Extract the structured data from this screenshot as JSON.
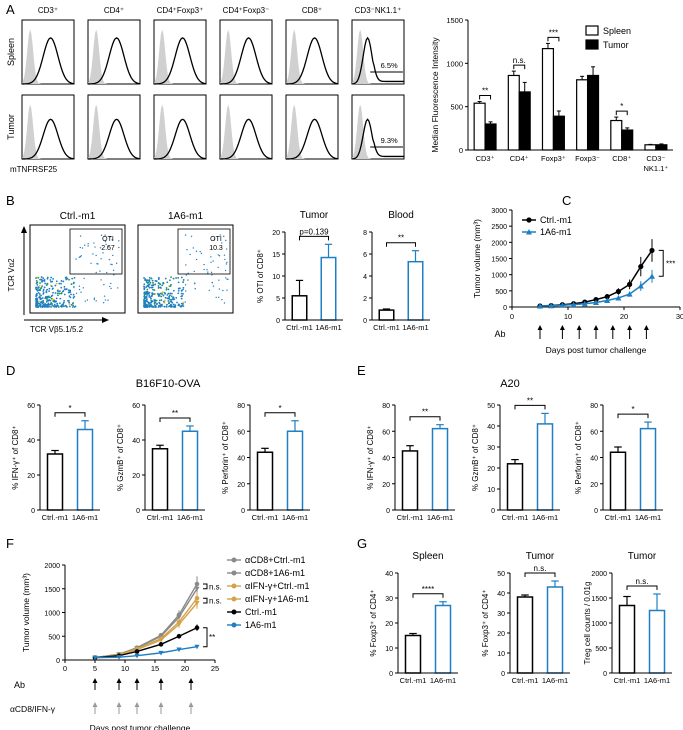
{
  "colors": {
    "black": "#000000",
    "blue": "#1f7fc4",
    "grey_fill": "#d0d0d0",
    "grey_line": "#9a9a9a",
    "gold": "#d4a24a",
    "darkgrey": "#8a8a8a"
  },
  "panel_letters": [
    "A",
    "B",
    "C",
    "D",
    "E",
    "F",
    "G"
  ],
  "A": {
    "flow_cols": [
      "CD3⁺",
      "CD4⁺",
      "CD4⁺Foxp3⁺",
      "CD4⁺Foxp3⁻",
      "CD8⁺",
      "CD3⁻NK1.1⁺"
    ],
    "flow_rows": [
      "Spleen",
      "Tumor"
    ],
    "xlabel": "mTNFRSF25",
    "gate_pct": [
      "6.5%",
      "9.3%"
    ]
  },
  "B": {
    "flow_titles": [
      "Ctrl.-m1",
      "1A6-m1"
    ],
    "gate_labels": [
      [
        "OTI",
        "2.67"
      ],
      [
        "OTI",
        "10.3"
      ]
    ],
    "xlabel": "TCR Vβ5.1/5.2",
    "ylabel": "TCR Vα2"
  },
  "chart_data": [
    {
      "id": "A_bar",
      "type": "bar",
      "ylabel": "Median Fluorescence Intensity",
      "ylim": [
        0,
        1500
      ],
      "yticks": [
        0,
        500,
        1000,
        1500
      ],
      "categories": [
        "CD3⁺",
        "CD4⁺",
        "Foxp3⁺",
        "Foxp3⁻",
        "CD8⁺",
        "CD3⁻ NK1.1⁺"
      ],
      "series": [
        {
          "name": "Spleen",
          "values": [
            540,
            860,
            1170,
            810,
            340,
            60
          ],
          "err": [
            20,
            50,
            60,
            40,
            40,
            5
          ]
        },
        {
          "name": "Tumor",
          "values": [
            300,
            670,
            390,
            860,
            230,
            60
          ],
          "err": [
            25,
            110,
            60,
            100,
            25,
            10
          ]
        }
      ],
      "sig": [
        "**",
        "n.s.",
        "***",
        "",
        "*",
        ""
      ]
    },
    {
      "id": "B_tumor",
      "type": "bar",
      "title": "Tumor",
      "ylabel": "% OTI of CD8⁺",
      "ylim": [
        0,
        20
      ],
      "yticks": [
        0,
        5,
        10,
        15,
        20
      ],
      "categories": [
        "Ctrl.-m1",
        "1A6-m1"
      ],
      "values": [
        5.5,
        14.2
      ],
      "err": [
        3.5,
        3.0
      ],
      "sig": "p=0.139"
    },
    {
      "id": "B_blood",
      "type": "bar",
      "title": "Blood",
      "ylabel": "",
      "ylim": [
        0,
        8
      ],
      "yticks": [
        0,
        2,
        4,
        6,
        8
      ],
      "categories": [
        "Ctrl.-m1",
        "1A6-m1"
      ],
      "values": [
        0.9,
        5.3
      ],
      "err": [
        0.1,
        1.0
      ],
      "sig": "**"
    },
    {
      "id": "C_line",
      "type": "line",
      "ylabel": "Tumor volume (mm³)",
      "xlabel": "Days post tumor challenge",
      "xlim": [
        0,
        30
      ],
      "ylim": [
        0,
        3000
      ],
      "xticks": [
        0,
        10,
        20,
        30
      ],
      "yticks": [
        0,
        500,
        1000,
        1500,
        2000,
        2500,
        3000
      ],
      "ab_days": [
        5,
        9,
        12,
        15,
        18,
        21,
        24
      ],
      "ab_label": "Ab",
      "series": [
        {
          "name": "Ctrl.-m1",
          "x": [
            5,
            7,
            9,
            11,
            13,
            15,
            17,
            19,
            21,
            23,
            25
          ],
          "y": [
            30,
            45,
            70,
            100,
            150,
            230,
            320,
            480,
            700,
            1250,
            1750
          ],
          "err": [
            5,
            8,
            12,
            20,
            30,
            50,
            80,
            100,
            150,
            300,
            350
          ]
        },
        {
          "name": "1A6-m1",
          "x": [
            5,
            7,
            9,
            11,
            13,
            15,
            17,
            19,
            21,
            23,
            25
          ],
          "y": [
            30,
            40,
            55,
            75,
            100,
            140,
            200,
            280,
            400,
            650,
            950
          ],
          "err": [
            5,
            6,
            10,
            15,
            20,
            30,
            40,
            50,
            80,
            150,
            200
          ]
        }
      ],
      "sig": "***"
    },
    {
      "id": "D1",
      "type": "bar",
      "ylabel": "% IFN-γ⁺ of CD8⁺",
      "ylim": [
        0,
        60
      ],
      "yticks": [
        0,
        20,
        40,
        60
      ],
      "categories": [
        "Ctrl.-m1",
        "1A6-m1"
      ],
      "values": [
        32,
        46
      ],
      "err": [
        2,
        5
      ],
      "sig": "*"
    },
    {
      "id": "D2",
      "type": "bar",
      "ylabel": "% GzmB⁺ of CD8⁺",
      "ylim": [
        0,
        60
      ],
      "yticks": [
        0,
        20,
        40,
        60
      ],
      "categories": [
        "Ctrl.-m1",
        "1A6-m1"
      ],
      "values": [
        35,
        45
      ],
      "err": [
        2,
        3
      ],
      "sig": "**"
    },
    {
      "id": "D3",
      "type": "bar",
      "ylabel": "% Perforin⁺ of CD8⁺",
      "ylim": [
        0,
        80
      ],
      "yticks": [
        0,
        20,
        40,
        60,
        80
      ],
      "categories": [
        "Ctrl.-m1",
        "1A6-m1"
      ],
      "values": [
        44,
        60
      ],
      "err": [
        3,
        8
      ],
      "sig": "*"
    },
    {
      "id": "E1",
      "type": "bar",
      "ylabel": "% IFN-γ⁺ of CD8⁺",
      "ylim": [
        0,
        80
      ],
      "yticks": [
        0,
        20,
        40,
        60,
        80
      ],
      "categories": [
        "Ctrl.-m1",
        "1A6-m1"
      ],
      "values": [
        45,
        62
      ],
      "err": [
        4,
        3
      ],
      "sig": "**"
    },
    {
      "id": "E2",
      "type": "bar",
      "ylabel": "% GzmB⁺ of CD8⁺",
      "ylim": [
        0,
        50
      ],
      "yticks": [
        0,
        10,
        20,
        30,
        40,
        50
      ],
      "categories": [
        "Ctrl.-m1",
        "1A6-m1"
      ],
      "values": [
        22,
        41
      ],
      "err": [
        2,
        5
      ],
      "sig": "**"
    },
    {
      "id": "E3",
      "type": "bar",
      "ylabel": "% Perforin⁺ of CD8⁺",
      "ylim": [
        0,
        80
      ],
      "yticks": [
        0,
        20,
        40,
        60,
        80
      ],
      "categories": [
        "Ctrl.-m1",
        "1A6-m1"
      ],
      "values": [
        44,
        62
      ],
      "err": [
        4,
        5
      ],
      "sig": "*"
    },
    {
      "id": "F_line",
      "type": "line",
      "ylabel": "Tumor volume (mm³)",
      "xlabel": "Days post tumor challenge",
      "xlim": [
        0,
        25
      ],
      "ylim": [
        0,
        2000
      ],
      "xticks": [
        0,
        5,
        10,
        15,
        20,
        25
      ],
      "yticks": [
        0,
        500,
        1000,
        1500,
        2000
      ],
      "ab_days": [
        5,
        9,
        12,
        16,
        21
      ],
      "ab_label": "Ab",
      "dep_days": [
        5,
        9,
        12,
        16,
        21
      ],
      "dep_label": "αCD8/IFN-γ",
      "series": [
        {
          "name": "αCD8+Ctrl.-m1",
          "x": [
            5,
            9,
            12,
            16,
            19,
            22
          ],
          "y": [
            50,
            120,
            260,
            520,
            950,
            1600
          ]
        },
        {
          "name": "αCD8+1A6-m1",
          "x": [
            5,
            9,
            12,
            16,
            19,
            22
          ],
          "y": [
            50,
            120,
            250,
            500,
            900,
            1500
          ]
        },
        {
          "name": "αIFN-γ+Ctrl.-m1",
          "x": [
            5,
            9,
            12,
            16,
            19,
            22
          ],
          "y": [
            50,
            110,
            230,
            450,
            800,
            1300
          ]
        },
        {
          "name": "αIFN-γ+1A6-m1",
          "x": [
            5,
            9,
            12,
            16,
            19,
            22
          ],
          "y": [
            50,
            100,
            220,
            420,
            750,
            1200
          ]
        },
        {
          "name": "Ctrl.-m1",
          "x": [
            5,
            9,
            12,
            16,
            19,
            22
          ],
          "y": [
            50,
            90,
            180,
            330,
            500,
            680
          ]
        },
        {
          "name": "1A6-m1",
          "x": [
            5,
            9,
            12,
            16,
            19,
            22
          ],
          "y": [
            50,
            60,
            90,
            150,
            220,
            280
          ]
        }
      ],
      "sig": [
        "n.s.",
        "n.s.",
        "**"
      ]
    },
    {
      "id": "G1",
      "type": "bar",
      "title": "Spleen",
      "ylabel": "% Foxp3⁺ of CD4⁺",
      "ylim": [
        0,
        40
      ],
      "yticks": [
        0,
        10,
        20,
        30,
        40
      ],
      "categories": [
        "Ctrl.-m1",
        "1A6-m1"
      ],
      "values": [
        15,
        27
      ],
      "err": [
        0.8,
        1.5
      ],
      "sig": "****"
    },
    {
      "id": "G2",
      "type": "bar",
      "title": "Tumor",
      "ylabel": "% Foxp3⁺ of CD4⁺",
      "ylim": [
        0,
        50
      ],
      "yticks": [
        0,
        10,
        20,
        30,
        40,
        50
      ],
      "categories": [
        "Ctrl.-m1",
        "1A6-m1"
      ],
      "values": [
        38,
        43
      ],
      "err": [
        1,
        3
      ],
      "sig": "n.s."
    },
    {
      "id": "G3",
      "type": "bar",
      "title": "Tumor",
      "ylabel": "Treg cell counts / 0.01g",
      "ylim": [
        0,
        2000
      ],
      "yticks": [
        0,
        500,
        1000,
        1500,
        2000
      ],
      "categories": [
        "Ctrl.-m1",
        "1A6-m1"
      ],
      "values": [
        1350,
        1250
      ],
      "err": [
        180,
        330
      ],
      "sig": "n.s."
    }
  ],
  "panelD_title": "B16F10-OVA",
  "panelE_title": "A20"
}
